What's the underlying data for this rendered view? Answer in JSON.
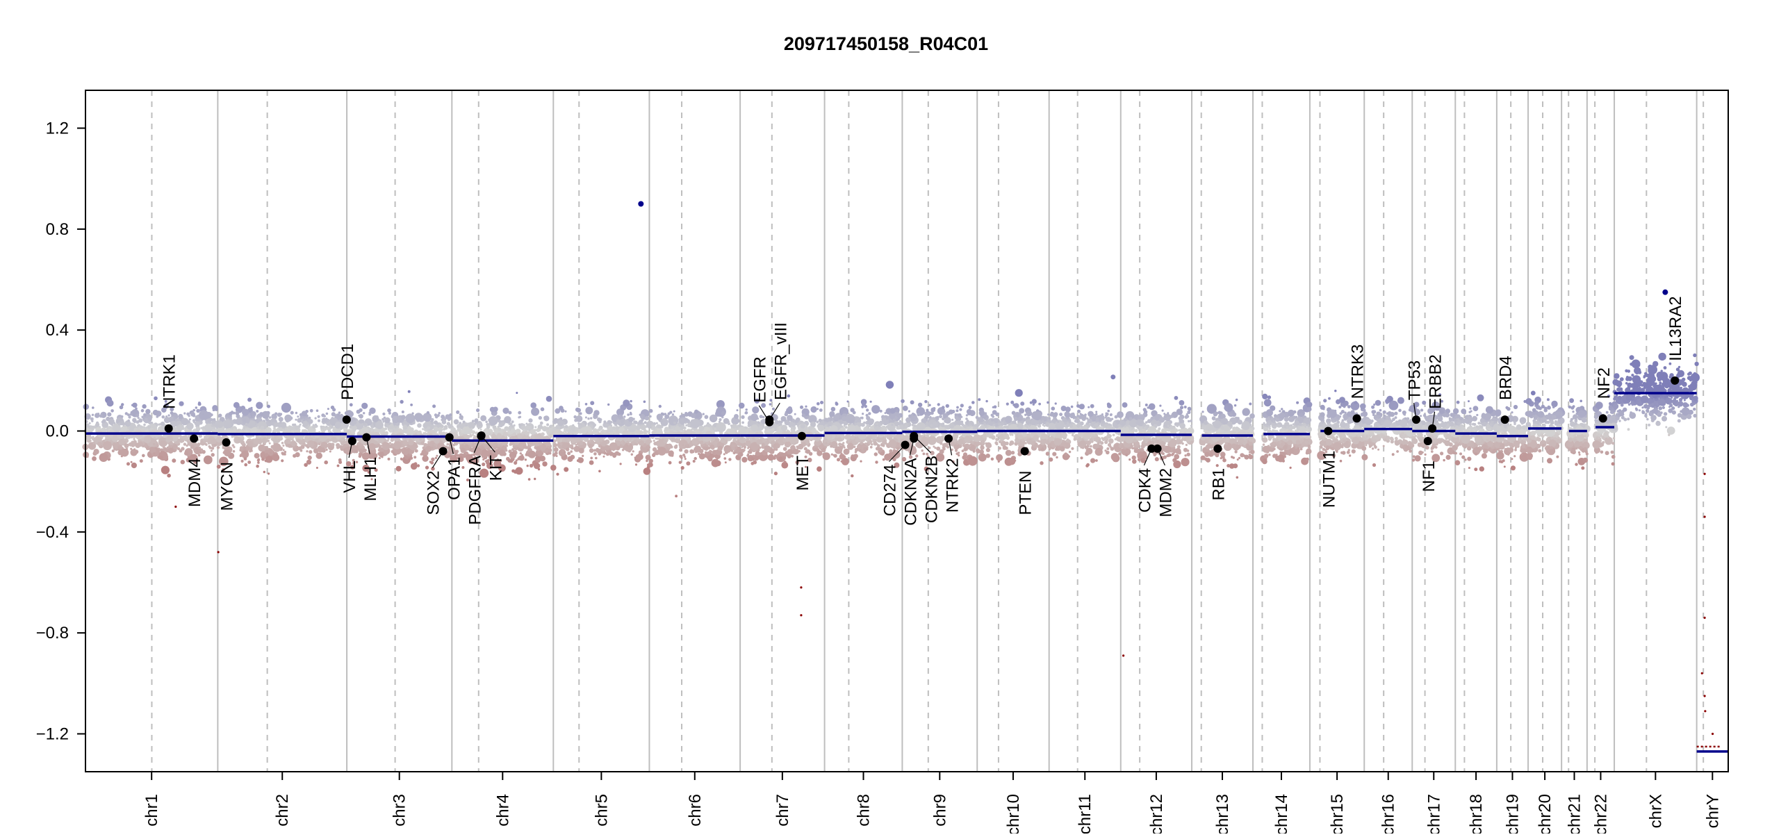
{
  "chart_data": {
    "type": "scatter",
    "title": "209717450158_R04C01",
    "xlabel": "",
    "ylabel": "",
    "ylim": [
      -1.35,
      1.35
    ],
    "yticks": [
      -1.2,
      -0.8,
      -0.4,
      0.0,
      0.4,
      0.8,
      1.2
    ],
    "ytick_labels": [
      "−1.2",
      "−0.8",
      "−0.4",
      "0.0",
      "0.4",
      "0.8",
      "1.2"
    ],
    "grid": false,
    "x_units": "Mb, concatenated genome",
    "chromosomes": [
      {
        "name": "chr1",
        "length": 249.3,
        "centromere": 125.0,
        "segment": -0.01,
        "pgap": 0
      },
      {
        "name": "chr2",
        "length": 243.2,
        "centromere": 93.3,
        "segment": -0.012,
        "pgap": 0
      },
      {
        "name": "chr3",
        "length": 198.0,
        "centromere": 91.0,
        "segment": -0.022,
        "pgap": 0
      },
      {
        "name": "chr4",
        "length": 191.2,
        "centromere": 50.4,
        "segment": -0.038,
        "pgap": 0
      },
      {
        "name": "chr5",
        "length": 180.9,
        "centromere": 48.4,
        "segment": -0.02,
        "pgap": 0
      },
      {
        "name": "chr6",
        "length": 171.1,
        "centromere": 61.0,
        "segment": -0.018,
        "pgap": 0
      },
      {
        "name": "chr7",
        "length": 159.1,
        "centromere": 59.9,
        "segment": -0.018,
        "pgap": 0
      },
      {
        "name": "chr8",
        "length": 146.4,
        "centromere": 45.6,
        "segment": -0.008,
        "pgap": 0
      },
      {
        "name": "chr9",
        "length": 141.2,
        "centromere": 49.0,
        "segment": -0.003,
        "pgap": 0
      },
      {
        "name": "chr10",
        "length": 135.5,
        "centromere": 40.2,
        "segment": 0.0,
        "pgap": 0
      },
      {
        "name": "chr11",
        "length": 135.0,
        "centromere": 53.7,
        "segment": 0.0,
        "pgap": 0
      },
      {
        "name": "chr12",
        "length": 133.9,
        "centromere": 35.8,
        "segment": -0.015,
        "pgap": 0
      },
      {
        "name": "chr13",
        "length": 115.2,
        "centromere": 17.9,
        "segment": -0.018,
        "pgap": 19
      },
      {
        "name": "chr14",
        "length": 107.3,
        "centromere": 17.6,
        "segment": -0.012,
        "pgap": 20
      },
      {
        "name": "chr15",
        "length": 102.5,
        "centromere": 19.0,
        "segment": 0.0,
        "pgap": 20
      },
      {
        "name": "chr16",
        "length": 90.4,
        "centromere": 36.6,
        "segment": 0.008,
        "pgap": 0
      },
      {
        "name": "chr17",
        "length": 81.2,
        "centromere": 24.0,
        "segment": 0.0,
        "pgap": 0
      },
      {
        "name": "chr18",
        "length": 78.1,
        "centromere": 17.2,
        "segment": -0.01,
        "pgap": 0
      },
      {
        "name": "chr19",
        "length": 59.1,
        "centromere": 26.5,
        "segment": -0.02,
        "pgap": 0
      },
      {
        "name": "chr20",
        "length": 63.0,
        "centromere": 27.5,
        "segment": 0.01,
        "pgap": 0
      },
      {
        "name": "chr21",
        "length": 48.1,
        "centromere": 13.2,
        "segment": 0.0,
        "pgap": 14
      },
      {
        "name": "chr22",
        "length": 51.3,
        "centromere": 14.7,
        "segment": 0.015,
        "pgap": 16
      },
      {
        "name": "chrX",
        "length": 155.3,
        "centromere": 60.6,
        "segment": 0.15,
        "pgap": 0
      },
      {
        "name": "chrY",
        "length": 59.4,
        "centromere": 12.5,
        "segment": -1.27,
        "pgap": 0
      }
    ],
    "genes": [
      {
        "name": "NTRK1",
        "chr": "chr1",
        "pos": 156.8,
        "value": 0.01
      },
      {
        "name": "MDM4",
        "chr": "chr1",
        "pos": 204.5,
        "value": -0.03
      },
      {
        "name": "MYCN",
        "chr": "chr2",
        "pos": 16.0,
        "value": -0.045
      },
      {
        "name": "PDCD1",
        "chr": "chr2",
        "pos": 242.8,
        "value": 0.045
      },
      {
        "name": "VHL",
        "chr": "chr3",
        "pos": 10.2,
        "value": -0.04
      },
      {
        "name": "MLH1",
        "chr": "chr3",
        "pos": 37.0,
        "value": -0.025
      },
      {
        "name": "SOX2",
        "chr": "chr3",
        "pos": 181.4,
        "value": -0.08
      },
      {
        "name": "OPA1",
        "chr": "chr3",
        "pos": 193.3,
        "value": -0.025
      },
      {
        "name": "PDGFRA",
        "chr": "chr4",
        "pos": 55.1,
        "value": -0.02
      },
      {
        "name": "KIT",
        "chr": "chr4",
        "pos": 55.5,
        "value": -0.018
      },
      {
        "name": "EGFR",
        "chr": "chr7",
        "pos": 55.2,
        "value": 0.035
      },
      {
        "name": "EGFR_vIII",
        "chr": "chr7",
        "pos": 55.25,
        "value": 0.045
      },
      {
        "name": "MET",
        "chr": "chr7",
        "pos": 116.3,
        "value": -0.02
      },
      {
        "name": "CD274",
        "chr": "chr9",
        "pos": 5.5,
        "value": -0.055
      },
      {
        "name": "CDKN2A",
        "chr": "chr9",
        "pos": 21.97,
        "value": -0.03
      },
      {
        "name": "CDKN2B",
        "chr": "chr9",
        "pos": 22.0,
        "value": -0.02
      },
      {
        "name": "NTRK2",
        "chr": "chr9",
        "pos": 87.3,
        "value": -0.03
      },
      {
        "name": "PTEN",
        "chr": "chr10",
        "pos": 89.6,
        "value": -0.08
      },
      {
        "name": "CDK4",
        "chr": "chr12",
        "pos": 58.1,
        "value": -0.07
      },
      {
        "name": "MDM2",
        "chr": "chr12",
        "pos": 69.2,
        "value": -0.07
      },
      {
        "name": "RB1",
        "chr": "chr13",
        "pos": 48.9,
        "value": -0.07
      },
      {
        "name": "NUTM1",
        "chr": "chr15",
        "pos": 34.6,
        "value": 0.0
      },
      {
        "name": "NTRK3",
        "chr": "chr15",
        "pos": 88.5,
        "value": 0.05
      },
      {
        "name": "TP53",
        "chr": "chr17",
        "pos": 7.5,
        "value": 0.045
      },
      {
        "name": "NF1",
        "chr": "chr17",
        "pos": 29.5,
        "value": -0.04
      },
      {
        "name": "ERBB2",
        "chr": "chr17",
        "pos": 37.8,
        "value": 0.01
      },
      {
        "name": "BRD4",
        "chr": "chr19",
        "pos": 15.4,
        "value": 0.045
      },
      {
        "name": "NF2",
        "chr": "chr22",
        "pos": 30.0,
        "value": 0.05
      },
      {
        "name": "IL13RA2",
        "chr": "chrX",
        "pos": 114.2,
        "value": 0.2
      }
    ],
    "outliers": [
      {
        "chr": "chrX",
        "pos": 96,
        "value": 0.55
      },
      {
        "chr": "chr5",
        "pos": 165,
        "value": 0.9
      },
      {
        "chr": "chr7",
        "pos": 115,
        "value": -0.62
      },
      {
        "chr": "chr7",
        "pos": 115,
        "value": -0.73
      },
      {
        "chr": "chr2",
        "pos": 1,
        "value": -0.48
      },
      {
        "chr": "chr1",
        "pos": 170,
        "value": -0.3
      },
      {
        "chr": "chr12",
        "pos": 5,
        "value": -0.89
      },
      {
        "chr": "chrY",
        "pos": 15,
        "value": -0.17
      },
      {
        "chr": "chrY",
        "pos": 15,
        "value": -0.34
      },
      {
        "chr": "chrY",
        "pos": 15,
        "value": -0.74
      },
      {
        "chr": "chrY",
        "pos": 10,
        "value": -0.96
      },
      {
        "chr": "chrY",
        "pos": 15,
        "value": -1.05
      },
      {
        "chr": "chrY",
        "pos": 16,
        "value": -1.11
      },
      {
        "chr": "chrY",
        "pos": 30,
        "value": -1.2
      }
    ],
    "colors": {
      "segment": "#00008b",
      "gain": "#7f7fb8",
      "neutral": "#d3d3d3",
      "loss": "#b88080",
      "gene_point": "#000000",
      "outlier": "#8b0000",
      "chrom_line": "#bebebe"
    }
  }
}
